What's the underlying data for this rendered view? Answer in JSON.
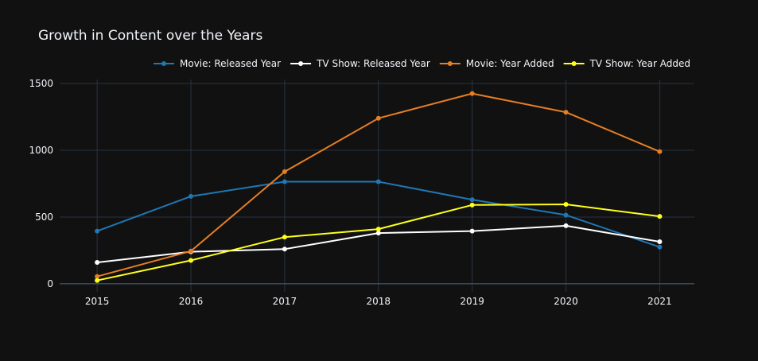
{
  "chart_data": {
    "type": "line",
    "title": "Growth in Content over the Years",
    "xlabel": "",
    "ylabel": "",
    "x": [
      2015,
      2016,
      2017,
      2018,
      2019,
      2020,
      2021
    ],
    "xlim": [
      2014.6,
      2021.37
    ],
    "ylim": [
      -60,
      1530
    ],
    "yticks": [
      0,
      500,
      1000,
      1500
    ],
    "grid": true,
    "legend_position": "top-right",
    "series": [
      {
        "name": "Movie: Released Year",
        "color": "#1f77b4",
        "values": [
          395,
          655,
          765,
          765,
          630,
          515,
          275
        ]
      },
      {
        "name": "TV Show: Released Year",
        "color": "#ffffff",
        "values": [
          160,
          240,
          260,
          380,
          395,
          435,
          315
        ]
      },
      {
        "name": "Movie: Year Added",
        "color": "#e67e22",
        "values": [
          55,
          245,
          840,
          1240,
          1425,
          1285,
          990
        ]
      },
      {
        "name": "TV Show: Year Added",
        "color": "#ffff1a",
        "values": [
          25,
          175,
          350,
          410,
          590,
          595,
          505
        ]
      }
    ]
  }
}
